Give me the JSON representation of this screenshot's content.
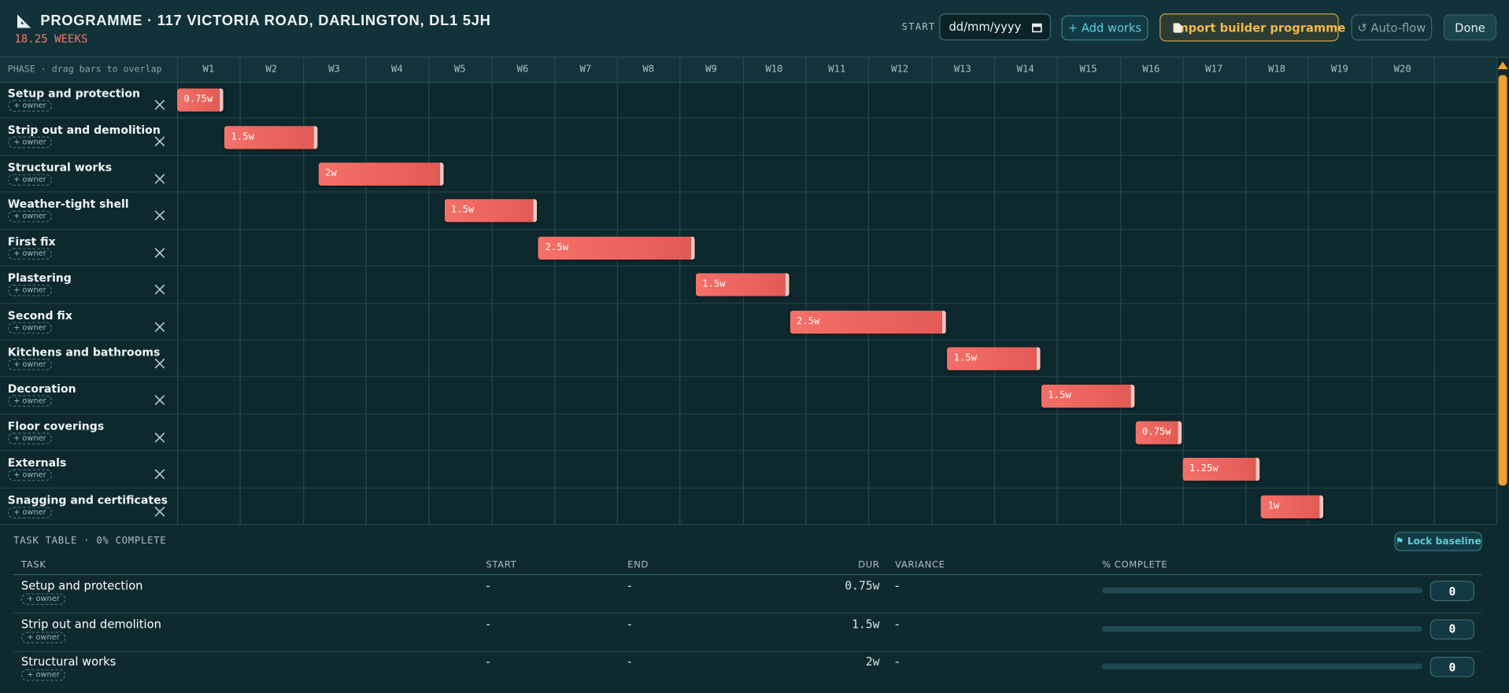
{
  "header": {
    "title": "PROGRAMME · 117 VICTORIA ROAD, DARLINGTON, DL1 5JH",
    "total": "18.25 WEEKS",
    "start_label": "START",
    "start_placeholder": "dd/mm/yyyy",
    "buttons": [
      "+ Add works",
      "Import builder programme",
      "↺ Auto-flow",
      "Done"
    ]
  },
  "gantt": {
    "phase_header": "PHASE · drag bars to overlap",
    "weeks": [
      "W1",
      "W2",
      "W3",
      "W4",
      "W5",
      "W6",
      "W7",
      "W8",
      "W9",
      "W10",
      "W11",
      "W12",
      "W13",
      "W14",
      "W15",
      "W16",
      "W17",
      "W18",
      "W19",
      "W20"
    ],
    "tasks": [
      {
        "name": "Setup and protection",
        "owner": "+ owner",
        "start": 0,
        "duration": 0.75,
        "duration_label": "0.75w"
      },
      {
        "name": "Strip out and demolition",
        "owner": "+ owner",
        "start": 0.75,
        "duration": 1.5,
        "duration_label": "1.5w"
      },
      {
        "name": "Structural works",
        "owner": "+ owner",
        "start": 2.25,
        "duration": 2,
        "duration_label": "2w"
      },
      {
        "name": "Weather-tight shell",
        "owner": "+ owner",
        "start": 4.25,
        "duration": 1.5,
        "duration_label": "1.5w"
      },
      {
        "name": "First fix",
        "owner": "+ owner",
        "start": 5.75,
        "duration": 2.5,
        "duration_label": "2.5w"
      },
      {
        "name": "Plastering",
        "owner": "+ owner",
        "start": 8.25,
        "duration": 1.5,
        "duration_label": "1.5w"
      },
      {
        "name": "Second fix",
        "owner": "+ owner",
        "start": 9.75,
        "duration": 2.5,
        "duration_label": "2.5w"
      },
      {
        "name": "Kitchens and bathrooms",
        "owner": "+ owner",
        "start": 12.25,
        "duration": 1.5,
        "duration_label": "1.5w"
      },
      {
        "name": "Decoration",
        "owner": "+ owner",
        "start": 13.75,
        "duration": 1.5,
        "duration_label": "1.5w"
      },
      {
        "name": "Floor coverings",
        "owner": "+ owner",
        "start": 15.25,
        "duration": 0.75,
        "duration_label": "0.75w"
      },
      {
        "name": "Externals",
        "owner": "+ owner",
        "start": 16,
        "duration": 1.25,
        "duration_label": "1.25w"
      },
      {
        "name": "Snagging and certificates",
        "owner": "+ owner",
        "start": 17.25,
        "duration": 1,
        "duration_label": "1w"
      }
    ]
  },
  "task_table": {
    "title": "TASK TABLE · 0% COMPLETE",
    "lock_button": "⚑ Lock baseline",
    "columns": [
      "TASK",
      "START",
      "END",
      "DUR",
      "VARIANCE",
      "% COMPLETE"
    ],
    "rows": [
      {
        "name": "Setup and protection",
        "owner": "+ owner",
        "start": "-",
        "end": "-",
        "duration_label": "0.75w",
        "variance": "-",
        "complete": 0
      },
      {
        "name": "Strip out and demolition",
        "owner": "+ owner",
        "start": "-",
        "end": "-",
        "duration_label": "1.5w",
        "variance": "-",
        "complete": 0
      },
      {
        "name": "Structural works",
        "owner": "+ owner",
        "start": "-",
        "end": "-",
        "duration_label": "2w",
        "variance": "-",
        "complete": 0
      }
    ]
  }
}
